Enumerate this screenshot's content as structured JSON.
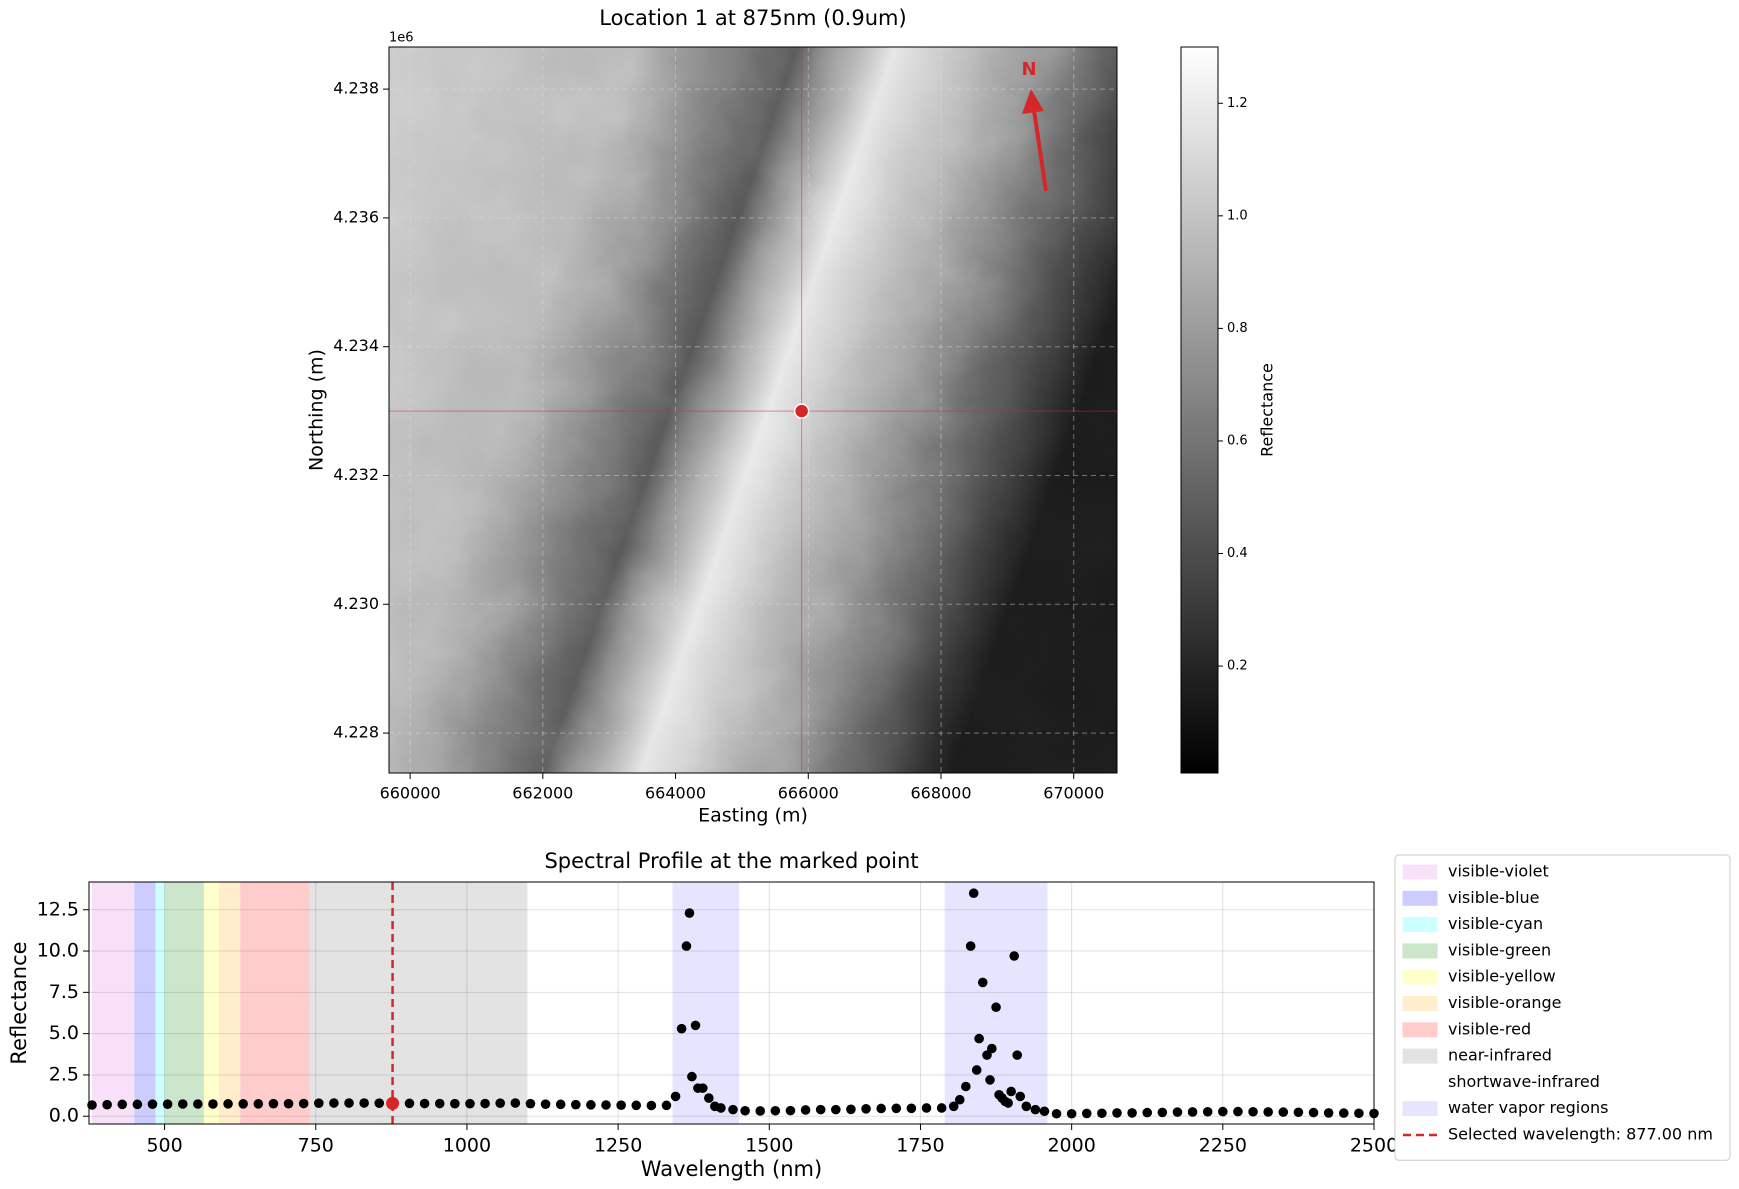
{
  "chart_data": [
    {
      "type": "image",
      "title": "Location 1 at 875nm (0.9um)",
      "xlabel": "Easting (m)",
      "ylabel": "Northing (m)",
      "y_offset_label": "1e6",
      "xlim": [
        659682,
        670652
      ],
      "ylim": [
        4227380,
        4238654
      ],
      "xticks": [
        660000,
        662000,
        664000,
        666000,
        668000,
        670000
      ],
      "yticks": [
        {
          "value": 4228000,
          "label": "4.228"
        },
        {
          "value": 4230000,
          "label": "4.230"
        },
        {
          "value": 4232000,
          "label": "4.232"
        },
        {
          "value": 4234000,
          "label": "4.234"
        },
        {
          "value": 4236000,
          "label": "4.236"
        },
        {
          "value": 4238000,
          "label": "4.238"
        }
      ],
      "grid": true,
      "marker": {
        "x": 665900,
        "y": 4233000,
        "color": "#d62728"
      },
      "annotation": "N",
      "colorbar": {
        "label": "Reflectance",
        "clim": [
          0.01,
          1.3
        ],
        "ticks": [
          0.2,
          0.4,
          0.6,
          0.8,
          {
            "value": 1,
            "label": "1.0"
          },
          1.2
        ]
      }
    },
    {
      "type": "scatter",
      "title": "Spectral Profile at the marked point",
      "xlabel": "Wavelength (nm)",
      "ylabel": "Reflectance",
      "xlim": [
        375,
        2500
      ],
      "ylim": [
        -0.47,
        14.18
      ],
      "xticks": [
        500,
        750,
        1000,
        1250,
        1500,
        1750,
        2000,
        2250,
        2500
      ],
      "yticks": [
        {
          "value": 0,
          "label": "0.0"
        },
        2.5,
        {
          "value": 5,
          "label": "5.0"
        },
        7.5,
        {
          "value": 10,
          "label": "10.0"
        },
        12.5
      ],
      "grid": true,
      "color": "#000000",
      "legend": "outside right",
      "regions": [
        {
          "name": "visible-violet",
          "color": "#f9e0f9",
          "ranges": [
            [
              380,
              450
            ]
          ]
        },
        {
          "name": "visible-blue",
          "color": "#ccccff",
          "ranges": [
            [
              450,
              485
            ]
          ]
        },
        {
          "name": "visible-cyan",
          "color": "#ccffff",
          "ranges": [
            [
              485,
              500
            ]
          ]
        },
        {
          "name": "visible-green",
          "color": "#cce6cc",
          "ranges": [
            [
              500,
              565
            ]
          ]
        },
        {
          "name": "visible-yellow",
          "color": "#ffffcc",
          "ranges": [
            [
              565,
              590
            ]
          ]
        },
        {
          "name": "visible-orange",
          "color": "#ffedcc",
          "ranges": [
            [
              590,
              625
            ]
          ]
        },
        {
          "name": "visible-red",
          "color": "#ffcccc",
          "ranges": [
            [
              625,
              740
            ]
          ]
        },
        {
          "name": "near-infrared",
          "color": "#e3e3e3",
          "ranges": [
            [
              740,
              1100
            ]
          ]
        },
        {
          "name": "shortwave-infrared",
          "color": "#ffffff",
          "ranges": [
            [
              1100,
              2500
            ]
          ]
        },
        {
          "name": "water vapor regions",
          "color": "#e5e5ff",
          "ranges": [
            [
              1340,
              1450
            ],
            [
              1790,
              1960
            ]
          ]
        }
      ],
      "selected": {
        "x": 877,
        "y": 0.78,
        "label": "Selected wavelength: 877.00 nm",
        "color": "#d62728"
      },
      "x": [
        380,
        405,
        430,
        455,
        480,
        505,
        530,
        555,
        580,
        605,
        630,
        655,
        680,
        705,
        730,
        755,
        780,
        805,
        830,
        855,
        905,
        930,
        955,
        980,
        1005,
        1030,
        1055,
        1080,
        1105,
        1130,
        1155,
        1180,
        1205,
        1230,
        1255,
        1280,
        1305,
        1330,
        1345,
        1355,
        1363,
        1368,
        1372,
        1378,
        1382,
        1390,
        1400,
        1410,
        1420,
        1440,
        1460,
        1485,
        1510,
        1535,
        1560,
        1585,
        1610,
        1635,
        1660,
        1685,
        1710,
        1735,
        1760,
        1785,
        1805,
        1815,
        1825,
        1833,
        1838,
        1843,
        1847,
        1853,
        1860,
        1865,
        1868,
        1875,
        1880,
        1885,
        1890,
        1895,
        1900,
        1905,
        1910,
        1915,
        1925,
        1940,
        1955,
        1975,
        2000,
        2025,
        2050,
        2075,
        2100,
        2125,
        2150,
        2175,
        2200,
        2225,
        2250,
        2275,
        2300,
        2325,
        2350,
        2375,
        2400,
        2425,
        2450,
        2475,
        2500
      ],
      "values": [
        0.68,
        0.7,
        0.72,
        0.72,
        0.73,
        0.73,
        0.74,
        0.74,
        0.74,
        0.75,
        0.75,
        0.75,
        0.76,
        0.76,
        0.77,
        0.79,
        0.8,
        0.8,
        0.8,
        0.79,
        0.78,
        0.77,
        0.77,
        0.76,
        0.76,
        0.77,
        0.79,
        0.8,
        0.76,
        0.73,
        0.72,
        0.7,
        0.69,
        0.68,
        0.67,
        0.66,
        0.65,
        0.66,
        1.2,
        5.3,
        10.3,
        12.3,
        2.4,
        5.5,
        1.7,
        1.7,
        1.1,
        0.6,
        0.5,
        0.4,
        0.33,
        0.32,
        0.33,
        0.34,
        0.38,
        0.4,
        0.4,
        0.42,
        0.45,
        0.47,
        0.48,
        0.48,
        0.5,
        0.5,
        0.6,
        1.0,
        1.8,
        10.3,
        13.5,
        2.8,
        4.7,
        8.1,
        3.7,
        2.2,
        4.1,
        6.6,
        1.3,
        1.1,
        0.9,
        0.8,
        1.5,
        9.7,
        3.7,
        1.2,
        0.6,
        0.4,
        0.3,
        0.15,
        0.15,
        0.17,
        0.18,
        0.2,
        0.2,
        0.22,
        0.23,
        0.25,
        0.26,
        0.27,
        0.28,
        0.28,
        0.27,
        0.26,
        0.25,
        0.24,
        0.22,
        0.2,
        0.19,
        0.18,
        0.17
      ]
    }
  ]
}
